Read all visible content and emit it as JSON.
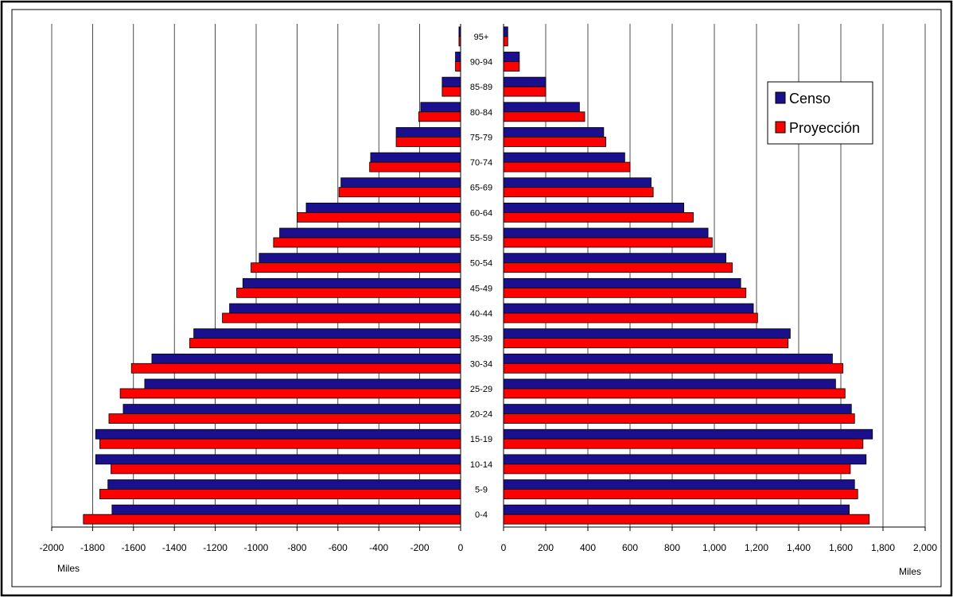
{
  "chart_data": {
    "type": "bar",
    "orientation": "horizontal",
    "layout": "population-pyramid",
    "categories": [
      "0-4",
      "5-9",
      "10-14",
      "15-19",
      "20-24",
      "25-29",
      "30-34",
      "35-39",
      "40-44",
      "45-49",
      "50-54",
      "55-59",
      "60-64",
      "65-69",
      "70-74",
      "75-79",
      "80-84",
      "85-89",
      "90-94",
      "95+"
    ],
    "left": {
      "xlabel": "Miles",
      "xlim": [
        -2000,
        0
      ],
      "ticks": [
        -2000,
        -1800,
        -1600,
        -1400,
        -1200,
        -1000,
        -800,
        -600,
        -400,
        -200,
        0
      ],
      "tick_labels": [
        "-2000",
        "-1800",
        "-1600",
        "-1400",
        "-1200",
        "-1000",
        "-800",
        "-600",
        "-400",
        "-200",
        "0"
      ],
      "series": [
        {
          "name": "Censo",
          "color": "#1a0f8c",
          "values": [
            -1705,
            -1725,
            -1785,
            -1785,
            -1650,
            -1545,
            -1510,
            -1305,
            -1130,
            -1065,
            -985,
            -885,
            -755,
            -585,
            -440,
            -315,
            -195,
            -90,
            -25,
            -8
          ]
        },
        {
          "name": "Proyección",
          "color": "#ff0000",
          "values": [
            -1845,
            -1765,
            -1710,
            -1765,
            -1720,
            -1665,
            -1610,
            -1325,
            -1165,
            -1095,
            -1025,
            -915,
            -800,
            -595,
            -445,
            -315,
            -205,
            -90,
            -25,
            -8
          ]
        }
      ]
    },
    "right": {
      "xlabel": "Miles",
      "xlim": [
        0,
        2000
      ],
      "ticks": [
        0,
        200,
        400,
        600,
        800,
        1000,
        1200,
        1400,
        1600,
        1800,
        2000
      ],
      "tick_labels": [
        "0",
        "200",
        "400",
        "600",
        "800",
        "1,000",
        "1,200",
        "1,400",
        "1,600",
        "1,800",
        "2,000"
      ],
      "series": [
        {
          "name": "Censo",
          "color": "#1a0f8c",
          "values": [
            1640,
            1665,
            1720,
            1750,
            1650,
            1575,
            1560,
            1360,
            1185,
            1125,
            1055,
            970,
            855,
            700,
            575,
            475,
            360,
            200,
            75,
            20
          ]
        },
        {
          "name": "Proyección",
          "color": "#ff0000",
          "values": [
            1735,
            1680,
            1645,
            1705,
            1665,
            1620,
            1610,
            1350,
            1205,
            1150,
            1085,
            990,
            900,
            710,
            600,
            485,
            385,
            200,
            75,
            20
          ]
        }
      ]
    },
    "legend": {
      "position": "top-right",
      "entries": [
        {
          "label": "Censo",
          "color": "#1a0f8c"
        },
        {
          "label": "Proyección",
          "color": "#ff0000"
        }
      ]
    },
    "grid": {
      "vertical": true,
      "horizontal": false
    }
  }
}
